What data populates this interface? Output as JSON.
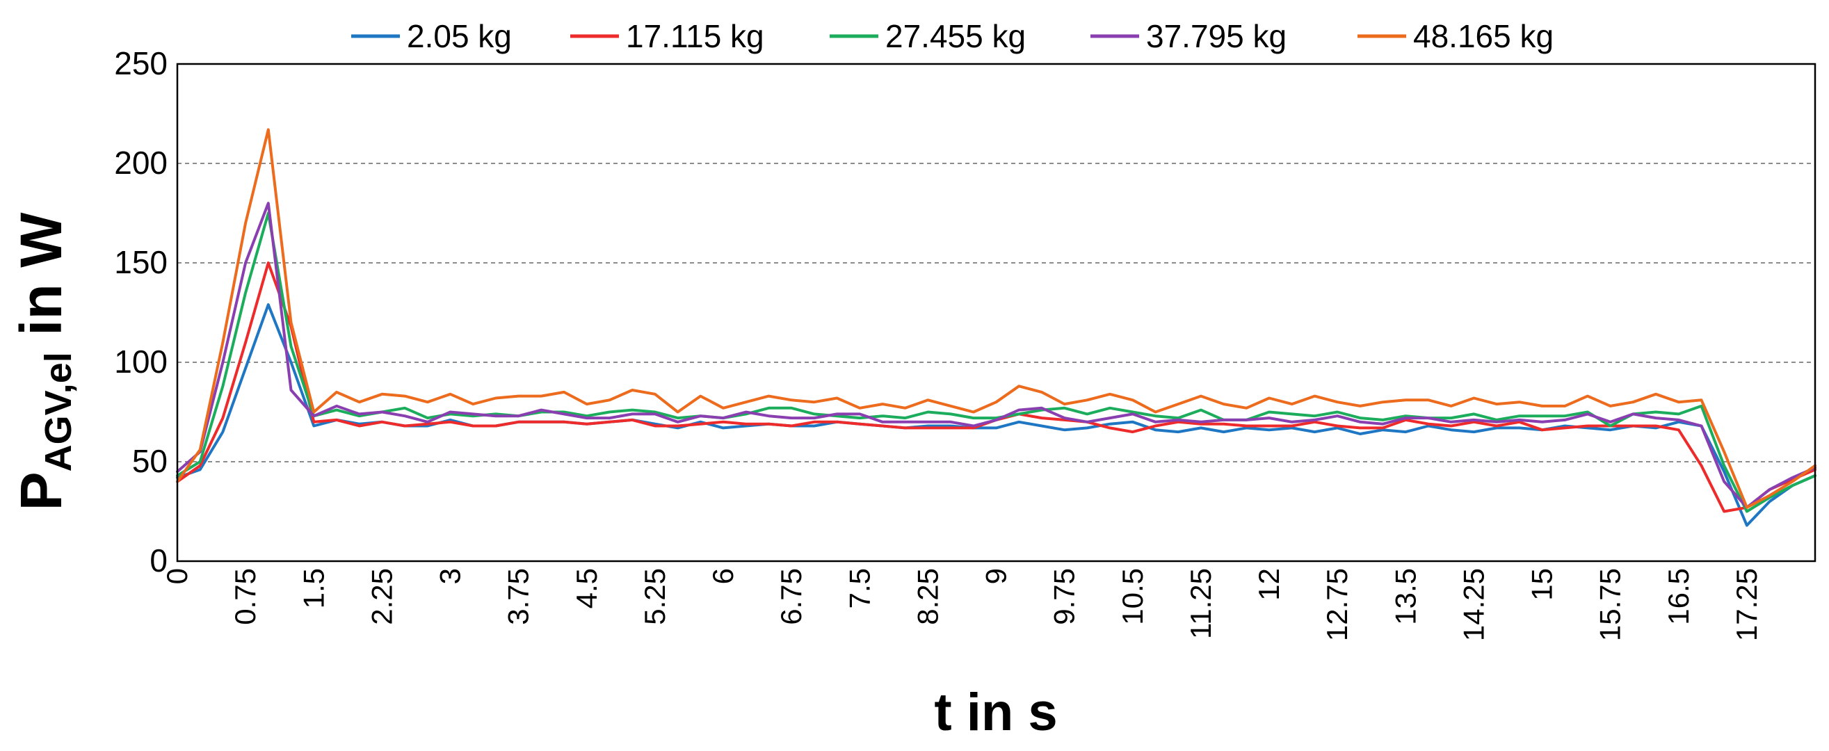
{
  "chart_data": {
    "type": "line",
    "ylabel": {
      "main": "P",
      "subscript": "AGV,el",
      "rest": " in W"
    },
    "xlabel": "t in s",
    "ylim": [
      0,
      250
    ],
    "xlim": [
      0,
      18
    ],
    "yticks": [
      "0",
      "50",
      "100",
      "150",
      "200",
      "250"
    ],
    "xticks": [
      "0",
      "0.75",
      "1.5",
      "2.25",
      "3",
      "3.75",
      "4.5",
      "5.25",
      "6",
      "6.75",
      "7.5",
      "8.25",
      "9",
      "9.75",
      "10.5",
      "11.25",
      "12",
      "12.75",
      "13.5",
      "14.25",
      "15",
      "15.75",
      "16.5",
      "17.25"
    ],
    "grid": "horizontal-dashed",
    "legend_position": "top",
    "x": [
      0,
      0.25,
      0.5,
      0.75,
      1.0,
      1.25,
      1.5,
      1.75,
      2.0,
      2.25,
      2.5,
      2.75,
      3.0,
      3.25,
      3.5,
      3.75,
      4.0,
      4.25,
      4.5,
      4.75,
      5.0,
      5.25,
      5.5,
      5.75,
      6.0,
      6.25,
      6.5,
      6.75,
      7.0,
      7.25,
      7.5,
      7.75,
      8.0,
      8.25,
      8.5,
      8.75,
      9.0,
      9.25,
      9.5,
      9.75,
      10.0,
      10.25,
      10.5,
      10.75,
      11.0,
      11.25,
      11.5,
      11.75,
      12.0,
      12.25,
      12.5,
      12.75,
      13.0,
      13.25,
      13.5,
      13.75,
      14.0,
      14.25,
      14.5,
      14.75,
      15.0,
      15.25,
      15.5,
      15.75,
      16.0,
      16.25,
      16.5,
      16.75,
      17.0,
      17.25,
      17.5,
      17.75,
      18.0
    ],
    "series": [
      {
        "name": "2.05 kg",
        "color": "#1f77c4",
        "values": [
          42,
          46,
          65,
          97,
          129,
          100,
          68,
          71,
          69,
          70,
          68,
          68,
          71,
          68,
          68,
          70,
          70,
          70,
          69,
          70,
          71,
          69,
          67,
          70,
          67,
          68,
          69,
          68,
          68,
          70,
          69,
          68,
          67,
          68,
          68,
          67,
          67,
          70,
          68,
          66,
          67,
          69,
          70,
          66,
          65,
          67,
          65,
          67,
          66,
          67,
          65,
          67,
          64,
          66,
          65,
          68,
          66,
          65,
          67,
          67,
          66,
          68,
          67,
          66,
          68,
          67,
          70,
          68,
          45,
          18,
          30,
          38,
          43
        ]
      },
      {
        "name": "17.115 kg",
        "color": "#ee2b2b",
        "values": [
          40,
          48,
          72,
          110,
          150,
          118,
          70,
          71,
          68,
          70,
          68,
          69,
          70,
          68,
          68,
          70,
          70,
          70,
          69,
          70,
          71,
          68,
          68,
          69,
          70,
          69,
          69,
          68,
          70,
          70,
          69,
          68,
          67,
          67,
          67,
          67,
          71,
          74,
          72,
          71,
          70,
          67,
          65,
          68,
          70,
          69,
          69,
          68,
          68,
          68,
          70,
          68,
          67,
          67,
          71,
          69,
          68,
          70,
          68,
          70,
          66,
          67,
          68,
          68,
          68,
          68,
          66,
          48,
          25,
          27,
          36,
          41,
          46
        ]
      },
      {
        "name": "27.455 kg",
        "color": "#1cad5c",
        "values": [
          43,
          50,
          88,
          135,
          175,
          108,
          73,
          76,
          73,
          75,
          77,
          72,
          74,
          73,
          74,
          73,
          75,
          75,
          73,
          75,
          76,
          75,
          72,
          73,
          72,
          74,
          77,
          77,
          74,
          73,
          72,
          73,
          72,
          75,
          74,
          72,
          72,
          74,
          76,
          77,
          74,
          77,
          75,
          73,
          72,
          76,
          71,
          71,
          75,
          74,
          73,
          75,
          72,
          71,
          73,
          72,
          72,
          74,
          71,
          73,
          73,
          73,
          75,
          68,
          74,
          75,
          74,
          78,
          48,
          25,
          32,
          38,
          43
        ]
      },
      {
        "name": "37.795 kg",
        "color": "#8a3fb0",
        "values": [
          45,
          55,
          100,
          150,
          180,
          86,
          73,
          78,
          74,
          75,
          73,
          70,
          75,
          74,
          73,
          73,
          76,
          74,
          72,
          72,
          74,
          74,
          70,
          73,
          72,
          75,
          73,
          72,
          72,
          74,
          74,
          70,
          70,
          70,
          70,
          68,
          71,
          76,
          77,
          72,
          70,
          72,
          74,
          70,
          71,
          70,
          71,
          71,
          72,
          70,
          71,
          73,
          70,
          69,
          72,
          72,
          70,
          71,
          70,
          71,
          70,
          71,
          74,
          70,
          74,
          72,
          71,
          68,
          40,
          27,
          36,
          42,
          47
        ]
      },
      {
        "name": "48.165 kg",
        "color": "#ec6b1d",
        "values": [
          40,
          56,
          110,
          170,
          217,
          120,
          75,
          85,
          80,
          84,
          83,
          80,
          84,
          79,
          82,
          83,
          83,
          85,
          79,
          81,
          86,
          84,
          75,
          83,
          77,
          80,
          83,
          81,
          80,
          82,
          77,
          79,
          77,
          81,
          78,
          75,
          80,
          88,
          85,
          79,
          81,
          84,
          81,
          75,
          79,
          83,
          79,
          77,
          82,
          79,
          83,
          80,
          78,
          80,
          81,
          81,
          78,
          82,
          79,
          80,
          78,
          78,
          83,
          78,
          80,
          84,
          80,
          81,
          55,
          27,
          33,
          40,
          48
        ]
      }
    ]
  }
}
